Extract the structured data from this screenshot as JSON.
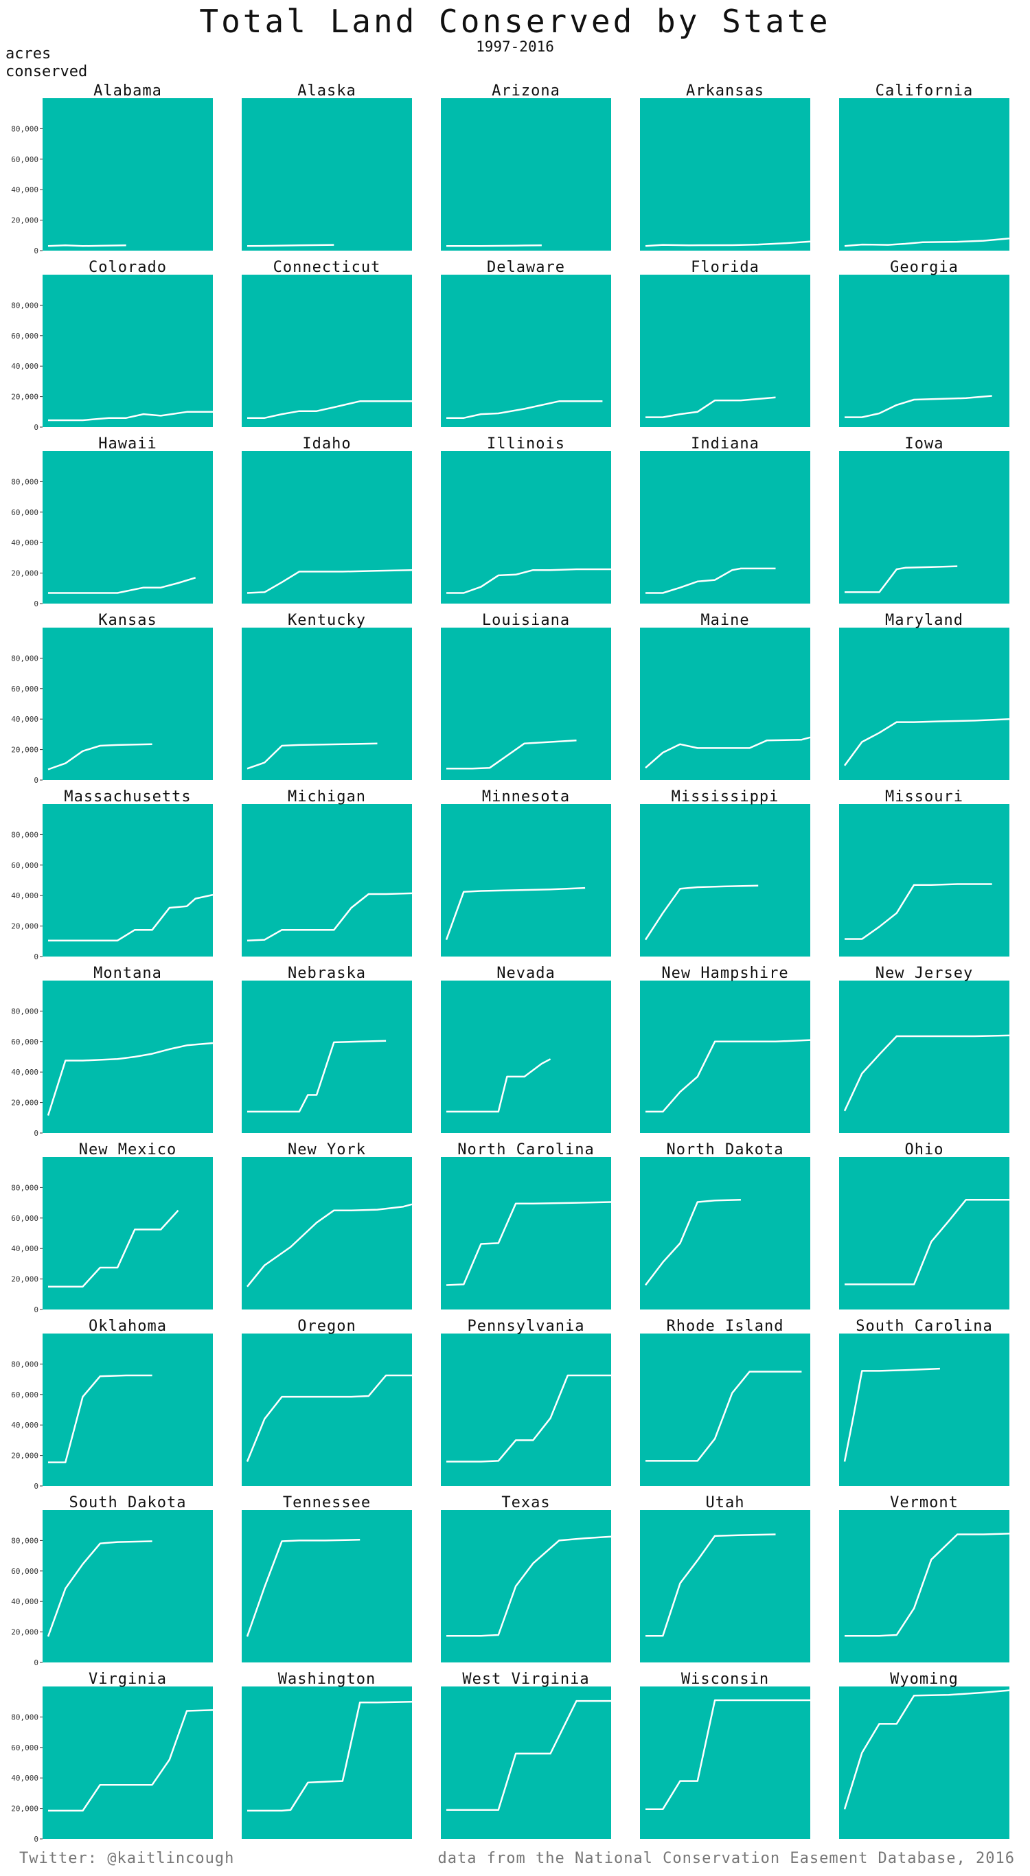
{
  "header": {
    "title": "Total Land Conserved by State",
    "subtitle": "1997-2016",
    "ylabel": "acres\nconserved"
  },
  "footer": {
    "left": "Twitter: @kaitlincough",
    "right": "data from the National Conservation Easement Database, 2016"
  },
  "colors": {
    "panel": "#00BCAC",
    "line": "#FFFFFF"
  },
  "chart_data": {
    "type": "line",
    "title": "Total Land Conserved by State",
    "subtitle": "1997-2016",
    "ylabel": "acres conserved",
    "xlim": [
      1997,
      2016
    ],
    "ylim": [
      0,
      100000
    ],
    "yticks": [
      0,
      20000,
      40000,
      60000,
      80000
    ],
    "ytick_labels": [
      "0",
      "20,000",
      "40,000",
      "60,000",
      "80,000"
    ],
    "grid": false,
    "layout": "10 rows x 5 columns small multiples",
    "series": [
      {
        "name": "Alabama",
        "x": [
          1997,
          1999,
          2001,
          2003,
          2006
        ],
        "y": [
          3000,
          3500,
          3000,
          3200,
          3500
        ]
      },
      {
        "name": "Alaska",
        "x": [
          1997,
          2000,
          2003,
          2007
        ],
        "y": [
          3000,
          3200,
          3500,
          3800
        ]
      },
      {
        "name": "Arizona",
        "x": [
          1997,
          2001,
          2005,
          2008
        ],
        "y": [
          3000,
          3000,
          3300,
          3500
        ]
      },
      {
        "name": "Arkansas",
        "x": [
          1997,
          1999,
          2002,
          2007,
          2010,
          2013,
          2016
        ],
        "y": [
          3000,
          3800,
          3500,
          3600,
          4000,
          4800,
          6000
        ]
      },
      {
        "name": "California",
        "x": [
          1997,
          1999,
          2002,
          2004,
          2006,
          2010,
          2013,
          2016
        ],
        "y": [
          3000,
          4000,
          3800,
          4500,
          5500,
          5800,
          6500,
          8000
        ]
      },
      {
        "name": "Colorado",
        "x": [
          1997,
          2001,
          2002,
          2004,
          2006,
          2008,
          2010,
          2013,
          2016
        ],
        "y": [
          4500,
          4500,
          5000,
          6000,
          6000,
          8500,
          7500,
          10000,
          10000
        ]
      },
      {
        "name": "Connecticut",
        "x": [
          1997,
          1999,
          2001,
          2003,
          2005,
          2007,
          2010,
          2016
        ],
        "y": [
          6000,
          6000,
          8500,
          10500,
          10500,
          13000,
          17000,
          17000
        ]
      },
      {
        "name": "Delaware",
        "x": [
          1997,
          1999,
          2001,
          2003,
          2006,
          2010,
          2015
        ],
        "y": [
          6000,
          6000,
          8500,
          9000,
          12000,
          17000,
          17000
        ]
      },
      {
        "name": "Florida",
        "x": [
          1997,
          1999,
          2001,
          2003,
          2005,
          2008,
          2012
        ],
        "y": [
          6500,
          6500,
          8500,
          10000,
          17500,
          17500,
          19500
        ]
      },
      {
        "name": "Georgia",
        "x": [
          1997,
          1999,
          2001,
          2003,
          2005,
          2008,
          2011,
          2014
        ],
        "y": [
          6500,
          6500,
          9000,
          14500,
          18000,
          18500,
          19000,
          20500
        ]
      },
      {
        "name": "Hawaii",
        "x": [
          1997,
          2001,
          2003,
          2005,
          2008,
          2010,
          2012,
          2014
        ],
        "y": [
          7000,
          7000,
          7000,
          7000,
          10500,
          10500,
          13500,
          17000
        ]
      },
      {
        "name": "Idaho",
        "x": [
          1997,
          1999,
          2001,
          2003,
          2005,
          2008,
          2012,
          2016
        ],
        "y": [
          7000,
          7500,
          14000,
          21000,
          21000,
          21000,
          21500,
          22000
        ]
      },
      {
        "name": "Illinois",
        "x": [
          1997,
          1999,
          2001,
          2003,
          2005,
          2007,
          2009,
          2012,
          2016
        ],
        "y": [
          7000,
          7000,
          11000,
          18500,
          19000,
          22000,
          22000,
          22500,
          22500
        ]
      },
      {
        "name": "Indiana",
        "x": [
          1997,
          1999,
          2001,
          2003,
          2005,
          2007,
          2008,
          2012
        ],
        "y": [
          7000,
          7000,
          10500,
          14500,
          15500,
          22000,
          23000,
          23000
        ]
      },
      {
        "name": "Iowa",
        "x": [
          1997,
          2001,
          2002,
          2003,
          2004,
          2007,
          2010
        ],
        "y": [
          7500,
          7500,
          15000,
          22500,
          23500,
          24000,
          24500
        ]
      },
      {
        "name": "Kansas",
        "x": [
          1997,
          1999,
          2001,
          2003,
          2005,
          2009
        ],
        "y": [
          7000,
          11000,
          19000,
          22500,
          23000,
          23500
        ]
      },
      {
        "name": "Kentucky",
        "x": [
          1997,
          1999,
          2001,
          2003,
          2008,
          2012
        ],
        "y": [
          7500,
          11500,
          22500,
          23000,
          23500,
          24000
        ]
      },
      {
        "name": "Louisiana",
        "x": [
          1997,
          2000,
          2002,
          2004,
          2006,
          2009,
          2012
        ],
        "y": [
          7500,
          7500,
          8000,
          16000,
          24000,
          25000,
          26000
        ]
      },
      {
        "name": "Maine",
        "x": [
          1997,
          1999,
          2001,
          2003,
          2005,
          2009,
          2011,
          2015,
          2016
        ],
        "y": [
          8000,
          18000,
          23500,
          21000,
          21000,
          21000,
          26000,
          26500,
          28000
        ]
      },
      {
        "name": "Maryland",
        "x": [
          1997,
          1999,
          2001,
          2003,
          2005,
          2008,
          2012,
          2016
        ],
        "y": [
          9500,
          25000,
          31000,
          38000,
          38000,
          38500,
          39000,
          40000
        ]
      },
      {
        "name": "Massachusetts",
        "x": [
          1997,
          2001,
          2003,
          2005,
          2007,
          2009,
          2011,
          2013,
          2014,
          2016
        ],
        "y": [
          10500,
          10500,
          10500,
          10500,
          17500,
          17500,
          32000,
          33000,
          38000,
          40500
        ]
      },
      {
        "name": "Michigan",
        "x": [
          1997,
          1999,
          2001,
          2003,
          2005,
          2007,
          2009,
          2011,
          2013,
          2016
        ],
        "y": [
          10500,
          11000,
          17500,
          17500,
          17500,
          17500,
          32000,
          41000,
          41000,
          41500
        ]
      },
      {
        "name": "Minnesota",
        "x": [
          1997,
          1999,
          2001,
          2005,
          2009,
          2013
        ],
        "y": [
          11000,
          42500,
          43000,
          43500,
          44000,
          45000
        ]
      },
      {
        "name": "Mississippi",
        "x": [
          1997,
          1999,
          2001,
          2003,
          2006,
          2010
        ],
        "y": [
          11000,
          28500,
          44500,
          45500,
          46000,
          46500
        ]
      },
      {
        "name": "Missouri",
        "x": [
          1997,
          1999,
          2001,
          2003,
          2005,
          2007,
          2010,
          2014
        ],
        "y": [
          11500,
          11500,
          19500,
          28500,
          47000,
          47000,
          47500,
          47500
        ]
      },
      {
        "name": "Montana",
        "x": [
          1997,
          1999,
          2001,
          2003,
          2005,
          2007,
          2009,
          2011,
          2013,
          2016
        ],
        "y": [
          11500,
          47500,
          47500,
          48000,
          48500,
          50000,
          52000,
          55000,
          57500,
          59000
        ]
      },
      {
        "name": "Nebraska",
        "x": [
          1997,
          1999,
          2001,
          2003,
          2004,
          2005,
          2007,
          2010,
          2013
        ],
        "y": [
          14000,
          14000,
          14000,
          14000,
          25000,
          25000,
          59500,
          60000,
          60500
        ]
      },
      {
        "name": "Nevada",
        "x": [
          1997,
          2001,
          2003,
          2004,
          2006,
          2008,
          2009
        ],
        "y": [
          14000,
          14000,
          14000,
          37000,
          37000,
          45500,
          48500
        ]
      },
      {
        "name": "New Hampshire",
        "x": [
          1997,
          1999,
          2001,
          2003,
          2005,
          2009,
          2012,
          2016
        ],
        "y": [
          14000,
          14000,
          27000,
          37000,
          60000,
          60000,
          60000,
          61000
        ]
      },
      {
        "name": "New Jersey",
        "x": [
          1997,
          1999,
          2001,
          2003,
          2005,
          2008,
          2012,
          2016
        ],
        "y": [
          14500,
          39000,
          51500,
          63500,
          63500,
          63500,
          63500,
          64000
        ]
      },
      {
        "name": "New Mexico",
        "x": [
          1997,
          2001,
          2003,
          2005,
          2007,
          2008,
          2010,
          2012
        ],
        "y": [
          15000,
          15000,
          27500,
          27500,
          52500,
          52500,
          52500,
          65000
        ]
      },
      {
        "name": "New York",
        "x": [
          1997,
          1999,
          2002,
          2005,
          2007,
          2009,
          2012,
          2015,
          2016
        ],
        "y": [
          15000,
          29000,
          41000,
          57000,
          65000,
          65000,
          65500,
          67500,
          69000
        ]
      },
      {
        "name": "North Carolina",
        "x": [
          1997,
          1999,
          2001,
          2003,
          2005,
          2007,
          2012,
          2016
        ],
        "y": [
          16000,
          16500,
          43000,
          43500,
          69500,
          69500,
          70000,
          70500
        ]
      },
      {
        "name": "North Dakota",
        "x": [
          1997,
          1999,
          2001,
          2003,
          2005,
          2008
        ],
        "y": [
          16000,
          31000,
          43500,
          70500,
          71500,
          72000
        ]
      },
      {
        "name": "Ohio",
        "x": [
          1997,
          2001,
          2003,
          2005,
          2007,
          2009,
          2011,
          2013,
          2016
        ],
        "y": [
          16500,
          16500,
          16500,
          16500,
          44500,
          58000,
          72000,
          72000,
          72000
        ]
      },
      {
        "name": "Oklahoma",
        "x": [
          1997,
          1999,
          2001,
          2003,
          2006,
          2009
        ],
        "y": [
          15500,
          15500,
          58500,
          72000,
          72500,
          72500
        ]
      },
      {
        "name": "Oregon",
        "x": [
          1997,
          1999,
          2001,
          2003,
          2006,
          2009,
          2011,
          2013,
          2016
        ],
        "y": [
          16000,
          44000,
          58500,
          58500,
          58500,
          58500,
          59000,
          72500,
          72500
        ]
      },
      {
        "name": "Pennsylvania",
        "x": [
          1997,
          2001,
          2003,
          2005,
          2007,
          2009,
          2011,
          2016
        ],
        "y": [
          16000,
          16000,
          16500,
          30000,
          30000,
          44500,
          72500,
          72500
        ]
      },
      {
        "name": "Rhode Island",
        "x": [
          1997,
          2001,
          2003,
          2005,
          2007,
          2009,
          2011,
          2015
        ],
        "y": [
          16500,
          16500,
          16500,
          31000,
          61000,
          75000,
          75000,
          75000
        ]
      },
      {
        "name": "South Carolina",
        "x": [
          1997,
          1998,
          1999,
          2001,
          2004,
          2008
        ],
        "y": [
          16000,
          45000,
          75500,
          75500,
          76000,
          77000
        ]
      },
      {
        "name": "South Dakota",
        "x": [
          1997,
          1999,
          2001,
          2003,
          2005,
          2009
        ],
        "y": [
          17000,
          48500,
          64500,
          78000,
          79000,
          79500
        ]
      },
      {
        "name": "Tennessee",
        "x": [
          1997,
          1999,
          2001,
          2003,
          2006,
          2010
        ],
        "y": [
          17000,
          49500,
          79500,
          80000,
          80000,
          80500
        ]
      },
      {
        "name": "Texas",
        "x": [
          1997,
          2001,
          2003,
          2005,
          2007,
          2010,
          2013,
          2016
        ],
        "y": [
          17500,
          17500,
          18000,
          50000,
          65000,
          80000,
          81500,
          82500
        ]
      },
      {
        "name": "Utah",
        "x": [
          1997,
          1999,
          2001,
          2003,
          2005,
          2008,
          2012
        ],
        "y": [
          17500,
          17500,
          52000,
          67000,
          83000,
          83500,
          84000
        ]
      },
      {
        "name": "Vermont",
        "x": [
          1997,
          2001,
          2003,
          2005,
          2007,
          2010,
          2013,
          2016
        ],
        "y": [
          17500,
          17500,
          18000,
          35500,
          67500,
          84000,
          84000,
          84500
        ]
      },
      {
        "name": "Virginia",
        "x": [
          1997,
          2001,
          2003,
          2005,
          2009,
          2011,
          2013,
          2016
        ],
        "y": [
          18500,
          18500,
          35500,
          35500,
          35500,
          52000,
          84000,
          84500
        ]
      },
      {
        "name": "Washington",
        "x": [
          1997,
          2001,
          2002,
          2004,
          2006,
          2008,
          2010,
          2012,
          2016
        ],
        "y": [
          18500,
          18500,
          19000,
          37000,
          37500,
          38000,
          89500,
          89500,
          90000
        ]
      },
      {
        "name": "West Virginia",
        "x": [
          1997,
          1999,
          2001,
          2003,
          2005,
          2007,
          2009,
          2012,
          2013,
          2016
        ],
        "y": [
          19000,
          19000,
          19000,
          19000,
          56000,
          56000,
          56000,
          90500,
          90500,
          90500
        ]
      },
      {
        "name": "Wisconsin",
        "x": [
          1997,
          1999,
          2001,
          2003,
          2005,
          2007,
          2010,
          2016
        ],
        "y": [
          19500,
          19500,
          38000,
          38000,
          91000,
          91000,
          91000,
          91000
        ]
      },
      {
        "name": "Wyoming",
        "x": [
          1997,
          1999,
          2001,
          2003,
          2005,
          2009,
          2013,
          2016
        ],
        "y": [
          19500,
          56500,
          75500,
          75500,
          94000,
          94500,
          96000,
          97500
        ]
      }
    ]
  }
}
